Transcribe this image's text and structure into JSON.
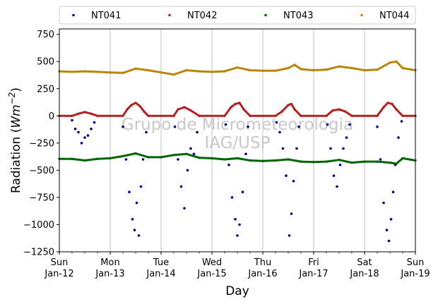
{
  "chart_data": {
    "type": "scatter",
    "xlabel": "Day",
    "ylabel_main": "Radiation (",
    "ylabel_math": "Wm",
    "ylabel_exp": "−2",
    "ylabel_close": ")",
    "ylim": [
      -1250,
      800
    ],
    "yticks": [
      -1250,
      -1000,
      -750,
      -500,
      -250,
      0,
      250,
      500,
      750
    ],
    "ytick_labels": [
      "−1250",
      "−1000",
      "−750",
      "−500",
      "−250",
      "0",
      "250",
      "500",
      "750"
    ],
    "xlim": [
      "2020-01-12",
      "2020-01-19"
    ],
    "xticks": [
      {
        "day": "Sun",
        "date": "Jan-12"
      },
      {
        "day": "Mon",
        "date": "Jan-13"
      },
      {
        "day": "Tue",
        "date": "Jan-14"
      },
      {
        "day": "Wed",
        "date": "Jan-15"
      },
      {
        "day": "Thu",
        "date": "Jan-16"
      },
      {
        "day": "Fri",
        "date": "Jan-17"
      },
      {
        "day": "Sat",
        "date": "Jan-18"
      },
      {
        "day": "Sun",
        "date": "Jan-19"
      }
    ],
    "grid": "vertical",
    "legend_placement": "top",
    "watermark": [
      "Grupo de Micrometeorologia",
      "IAG/USP"
    ],
    "series": [
      {
        "name": "NT041",
        "color": "#00008b",
        "points": [
          {
            "x": "2020-01-12 06:00",
            "y": -40
          },
          {
            "x": "2020-01-12 07:30",
            "y": -120
          },
          {
            "x": "2020-01-12 09:00",
            "y": -150
          },
          {
            "x": "2020-01-12 10:30",
            "y": -250
          },
          {
            "x": "2020-01-12 12:00",
            "y": -200
          },
          {
            "x": "2020-01-12 13:30",
            "y": -180
          },
          {
            "x": "2020-01-12 15:00",
            "y": -120
          },
          {
            "x": "2020-01-12 16:30",
            "y": -60
          },
          {
            "x": "2020-01-13 06:00",
            "y": -100
          },
          {
            "x": "2020-01-13 07:30",
            "y": -400
          },
          {
            "x": "2020-01-13 09:00",
            "y": -700
          },
          {
            "x": "2020-01-13 10:30",
            "y": -950
          },
          {
            "x": "2020-01-13 11:30",
            "y": -1050
          },
          {
            "x": "2020-01-13 12:30",
            "y": -800
          },
          {
            "x": "2020-01-13 13:30",
            "y": -1100
          },
          {
            "x": "2020-01-13 14:30",
            "y": -650
          },
          {
            "x": "2020-01-13 15:30",
            "y": -400
          },
          {
            "x": "2020-01-13 17:00",
            "y": -150
          },
          {
            "x": "2020-01-14 06:30",
            "y": -100
          },
          {
            "x": "2020-01-14 08:00",
            "y": -400
          },
          {
            "x": "2020-01-14 09:30",
            "y": -650
          },
          {
            "x": "2020-01-14 11:00",
            "y": -850
          },
          {
            "x": "2020-01-14 12:30",
            "y": -500
          },
          {
            "x": "2020-01-14 14:00",
            "y": -300
          },
          {
            "x": "2020-01-14 15:30",
            "y": -350
          },
          {
            "x": "2020-01-14 17:00",
            "y": -150
          },
          {
            "x": "2020-01-15 06:30",
            "y": -80
          },
          {
            "x": "2020-01-15 08:00",
            "y": -450
          },
          {
            "x": "2020-01-15 09:30",
            "y": -750
          },
          {
            "x": "2020-01-15 11:00",
            "y": -950
          },
          {
            "x": "2020-01-15 12:00",
            "y": -1100
          },
          {
            "x": "2020-01-15 13:00",
            "y": -1000
          },
          {
            "x": "2020-01-15 14:30",
            "y": -700
          },
          {
            "x": "2020-01-15 16:00",
            "y": -350
          },
          {
            "x": "2020-01-15 17:00",
            "y": -100
          },
          {
            "x": "2020-01-16 06:30",
            "y": -60
          },
          {
            "x": "2020-01-16 08:00",
            "y": -150
          },
          {
            "x": "2020-01-16 09:30",
            "y": -300
          },
          {
            "x": "2020-01-16 11:00",
            "y": -550
          },
          {
            "x": "2020-01-16 12:30",
            "y": -1100
          },
          {
            "x": "2020-01-16 13:30",
            "y": -900
          },
          {
            "x": "2020-01-16 14:30",
            "y": -600
          },
          {
            "x": "2020-01-16 16:00",
            "y": -300
          },
          {
            "x": "2020-01-16 17:00",
            "y": -100
          },
          {
            "x": "2020-01-17 06:30",
            "y": -80
          },
          {
            "x": "2020-01-17 08:00",
            "y": -300
          },
          {
            "x": "2020-01-17 09:30",
            "y": -550
          },
          {
            "x": "2020-01-17 11:00",
            "y": -650
          },
          {
            "x": "2020-01-17 12:30",
            "y": -450
          },
          {
            "x": "2020-01-17 14:00",
            "y": -300
          },
          {
            "x": "2020-01-17 15:30",
            "y": -200
          },
          {
            "x": "2020-01-17 17:00",
            "y": -80
          },
          {
            "x": "2020-01-18 06:00",
            "y": -100
          },
          {
            "x": "2020-01-18 07:30",
            "y": -400
          },
          {
            "x": "2020-01-18 09:00",
            "y": -800
          },
          {
            "x": "2020-01-18 10:30",
            "y": -1050
          },
          {
            "x": "2020-01-18 11:30",
            "y": -1150
          },
          {
            "x": "2020-01-18 12:30",
            "y": -950
          },
          {
            "x": "2020-01-18 13:30",
            "y": -700
          },
          {
            "x": "2020-01-18 14:30",
            "y": -450
          },
          {
            "x": "2020-01-18 16:00",
            "y": -200
          },
          {
            "x": "2020-01-18 17:30",
            "y": -50
          }
        ]
      },
      {
        "name": "NT042",
        "color": "#b22222",
        "points": [
          {
            "x": "2020-01-12 00:00",
            "y": 0
          },
          {
            "x": "2020-01-12 06:00",
            "y": 0
          },
          {
            "x": "2020-01-12 09:00",
            "y": 20
          },
          {
            "x": "2020-01-12 12:00",
            "y": 35
          },
          {
            "x": "2020-01-12 15:00",
            "y": 20
          },
          {
            "x": "2020-01-12 18:00",
            "y": 0
          },
          {
            "x": "2020-01-13 06:00",
            "y": 0
          },
          {
            "x": "2020-01-13 08:00",
            "y": 60
          },
          {
            "x": "2020-01-13 10:00",
            "y": 100
          },
          {
            "x": "2020-01-13 12:00",
            "y": 120
          },
          {
            "x": "2020-01-13 14:00",
            "y": 90
          },
          {
            "x": "2020-01-13 16:00",
            "y": 40
          },
          {
            "x": "2020-01-13 18:00",
            "y": 0
          },
          {
            "x": "2020-01-14 06:00",
            "y": 0
          },
          {
            "x": "2020-01-14 08:00",
            "y": 60
          },
          {
            "x": "2020-01-14 11:00",
            "y": 80
          },
          {
            "x": "2020-01-14 14:00",
            "y": 50
          },
          {
            "x": "2020-01-14 18:00",
            "y": 0
          },
          {
            "x": "2020-01-15 06:00",
            "y": 0
          },
          {
            "x": "2020-01-15 09:00",
            "y": 80
          },
          {
            "x": "2020-01-15 11:00",
            "y": 110
          },
          {
            "x": "2020-01-15 13:00",
            "y": 120
          },
          {
            "x": "2020-01-15 15:00",
            "y": 60
          },
          {
            "x": "2020-01-15 18:00",
            "y": 0
          },
          {
            "x": "2020-01-16 06:00",
            "y": 0
          },
          {
            "x": "2020-01-16 09:00",
            "y": 40
          },
          {
            "x": "2020-01-16 12:00",
            "y": 100
          },
          {
            "x": "2020-01-16 13:30",
            "y": 110
          },
          {
            "x": "2020-01-16 15:00",
            "y": 60
          },
          {
            "x": "2020-01-16 18:00",
            "y": 0
          },
          {
            "x": "2020-01-17 06:00",
            "y": 0
          },
          {
            "x": "2020-01-17 09:00",
            "y": 50
          },
          {
            "x": "2020-01-17 12:00",
            "y": 60
          },
          {
            "x": "2020-01-17 15:00",
            "y": 40
          },
          {
            "x": "2020-01-17 18:00",
            "y": 0
          },
          {
            "x": "2020-01-18 06:00",
            "y": 0
          },
          {
            "x": "2020-01-18 09:00",
            "y": 80
          },
          {
            "x": "2020-01-18 11:00",
            "y": 120
          },
          {
            "x": "2020-01-18 13:00",
            "y": 110
          },
          {
            "x": "2020-01-18 15:00",
            "y": 60
          },
          {
            "x": "2020-01-18 18:00",
            "y": 0
          },
          {
            "x": "2020-01-19 00:00",
            "y": 0
          }
        ]
      },
      {
        "name": "NT043",
        "color": "#006400",
        "points": [
          {
            "x": "2020-01-12 00:00",
            "y": -395
          },
          {
            "x": "2020-01-12 06:00",
            "y": -395
          },
          {
            "x": "2020-01-12 12:00",
            "y": -410
          },
          {
            "x": "2020-01-12 18:00",
            "y": -395
          },
          {
            "x": "2020-01-13 00:00",
            "y": -390
          },
          {
            "x": "2020-01-13 06:00",
            "y": -370
          },
          {
            "x": "2020-01-13 12:00",
            "y": -345
          },
          {
            "x": "2020-01-13 18:00",
            "y": -380
          },
          {
            "x": "2020-01-14 00:00",
            "y": -380
          },
          {
            "x": "2020-01-14 06:00",
            "y": -360
          },
          {
            "x": "2020-01-14 12:00",
            "y": -350
          },
          {
            "x": "2020-01-14 18:00",
            "y": -385
          },
          {
            "x": "2020-01-15 00:00",
            "y": -390
          },
          {
            "x": "2020-01-15 06:00",
            "y": -400
          },
          {
            "x": "2020-01-15 12:00",
            "y": -390
          },
          {
            "x": "2020-01-15 18:00",
            "y": -410
          },
          {
            "x": "2020-01-16 00:00",
            "y": -415
          },
          {
            "x": "2020-01-16 06:00",
            "y": -410
          },
          {
            "x": "2020-01-16 12:00",
            "y": -400
          },
          {
            "x": "2020-01-16 18:00",
            "y": -420
          },
          {
            "x": "2020-01-17 00:00",
            "y": -425
          },
          {
            "x": "2020-01-17 06:00",
            "y": -420
          },
          {
            "x": "2020-01-17 12:00",
            "y": -405
          },
          {
            "x": "2020-01-17 18:00",
            "y": -430
          },
          {
            "x": "2020-01-18 00:00",
            "y": -420
          },
          {
            "x": "2020-01-18 06:00",
            "y": -420
          },
          {
            "x": "2020-01-18 12:00",
            "y": -430
          },
          {
            "x": "2020-01-18 15:00",
            "y": -440
          },
          {
            "x": "2020-01-18 18:00",
            "y": -390
          },
          {
            "x": "2020-01-19 00:00",
            "y": -410
          }
        ]
      },
      {
        "name": "NT044",
        "color": "#b8860b",
        "points": [
          {
            "x": "2020-01-12 00:00",
            "y": 410
          },
          {
            "x": "2020-01-12 06:00",
            "y": 405
          },
          {
            "x": "2020-01-12 12:00",
            "y": 410
          },
          {
            "x": "2020-01-12 18:00",
            "y": 405
          },
          {
            "x": "2020-01-13 00:00",
            "y": 400
          },
          {
            "x": "2020-01-13 06:00",
            "y": 395
          },
          {
            "x": "2020-01-13 12:00",
            "y": 435
          },
          {
            "x": "2020-01-13 18:00",
            "y": 420
          },
          {
            "x": "2020-01-14 00:00",
            "y": 400
          },
          {
            "x": "2020-01-14 06:00",
            "y": 380
          },
          {
            "x": "2020-01-14 12:00",
            "y": 420
          },
          {
            "x": "2020-01-14 18:00",
            "y": 410
          },
          {
            "x": "2020-01-15 00:00",
            "y": 405
          },
          {
            "x": "2020-01-15 06:00",
            "y": 410
          },
          {
            "x": "2020-01-15 12:00",
            "y": 445
          },
          {
            "x": "2020-01-15 18:00",
            "y": 420
          },
          {
            "x": "2020-01-16 00:00",
            "y": 415
          },
          {
            "x": "2020-01-16 06:00",
            "y": 415
          },
          {
            "x": "2020-01-16 12:00",
            "y": 440
          },
          {
            "x": "2020-01-16 15:00",
            "y": 470
          },
          {
            "x": "2020-01-16 18:00",
            "y": 430
          },
          {
            "x": "2020-01-17 00:00",
            "y": 420
          },
          {
            "x": "2020-01-17 06:00",
            "y": 425
          },
          {
            "x": "2020-01-17 12:00",
            "y": 455
          },
          {
            "x": "2020-01-17 18:00",
            "y": 440
          },
          {
            "x": "2020-01-18 00:00",
            "y": 420
          },
          {
            "x": "2020-01-18 06:00",
            "y": 425
          },
          {
            "x": "2020-01-18 12:00",
            "y": 490
          },
          {
            "x": "2020-01-18 15:00",
            "y": 500
          },
          {
            "x": "2020-01-18 18:00",
            "y": 440
          },
          {
            "x": "2020-01-19 00:00",
            "y": 420
          }
        ]
      }
    ]
  }
}
